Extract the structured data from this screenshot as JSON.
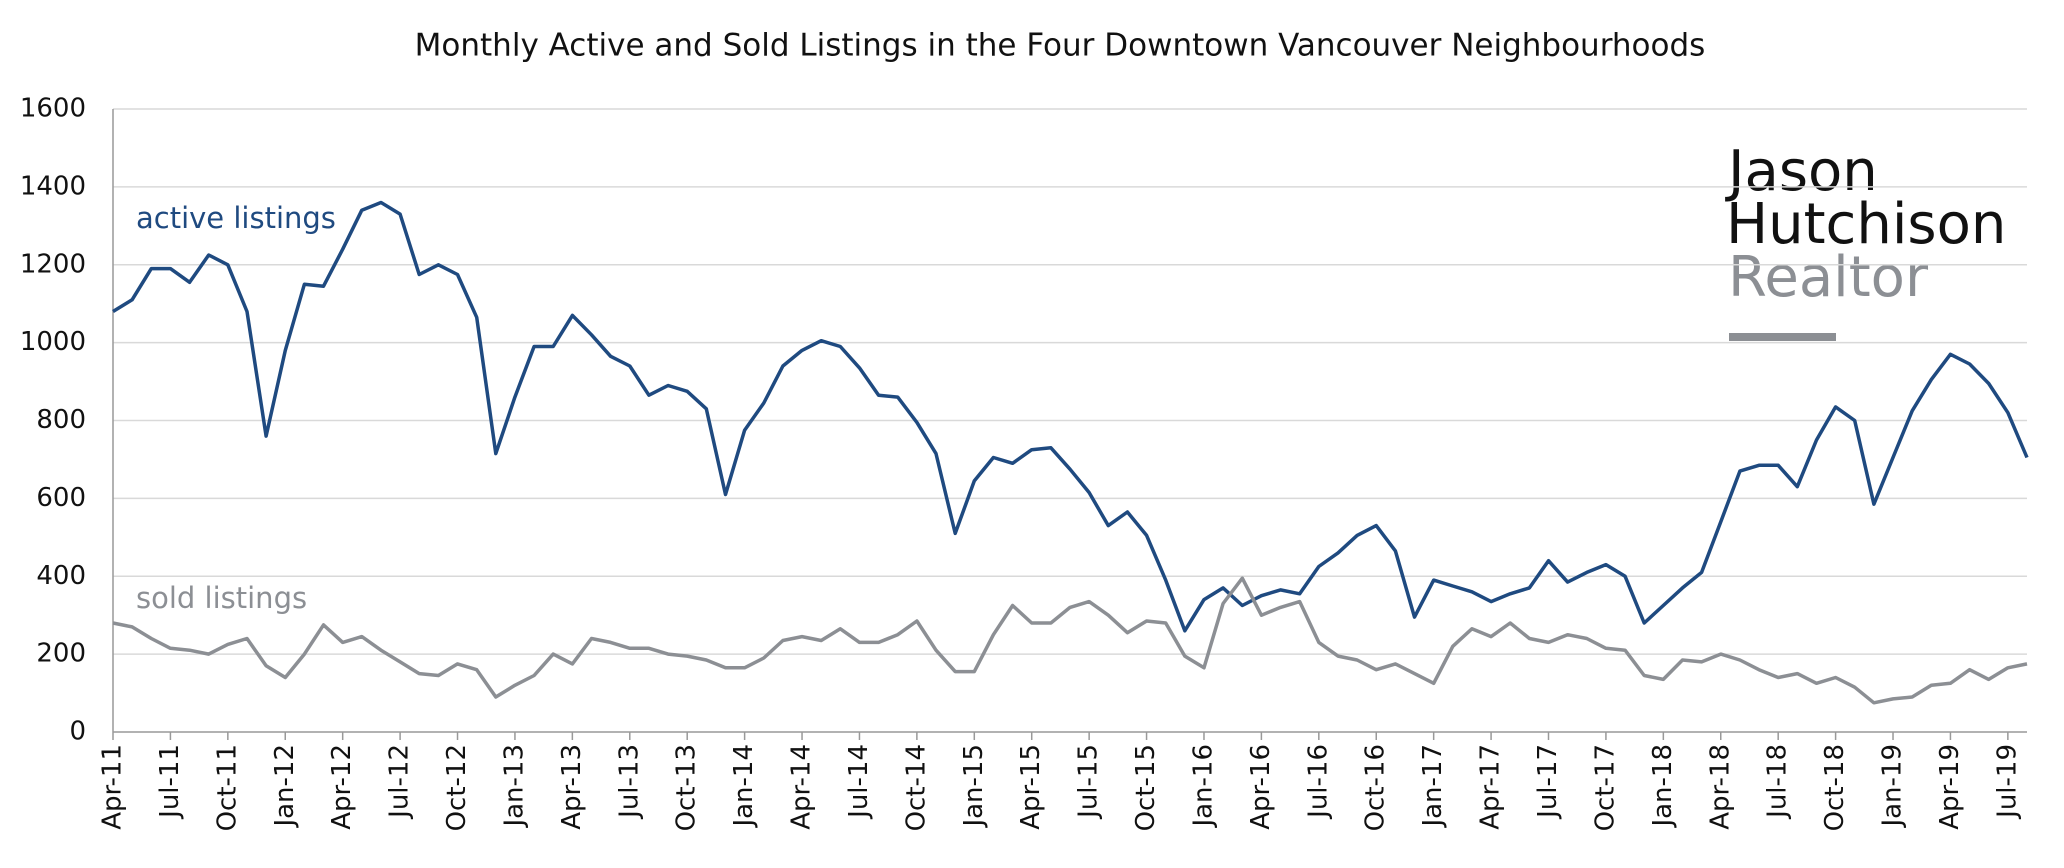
{
  "chart_data": {
    "type": "line",
    "title": "Monthly Active and Sold Listings in the Four Downtown Vancouver Neighbourhoods",
    "categories": [
      "Apr-11",
      null,
      null,
      "Jul-11",
      null,
      null,
      "Oct-11",
      null,
      null,
      "Jan-12",
      null,
      null,
      "Apr-12",
      null,
      null,
      "Jul-12",
      null,
      null,
      "Oct-12",
      null,
      null,
      "Jan-13",
      null,
      null,
      "Apr-13",
      null,
      null,
      "Jul-13",
      null,
      null,
      "Oct-13",
      null,
      null,
      "Jan-14",
      null,
      null,
      "Apr-14",
      null,
      null,
      "Jul-14",
      null,
      null,
      "Oct-14",
      null,
      null,
      "Jan-15",
      null,
      null,
      "Apr-15",
      null,
      null,
      "Jul-15",
      null,
      null,
      "Oct-15",
      null,
      null,
      "Jan-16",
      null,
      null,
      "Apr-16",
      null,
      null,
      "Jul-16",
      null,
      null,
      "Oct-16",
      null,
      null,
      "Jan-17",
      null,
      null,
      "Apr-17",
      null,
      null,
      "Jul-17",
      null,
      null,
      "Oct-17",
      null,
      null,
      "Jan-18",
      null,
      null,
      "Apr-18",
      null,
      null,
      "Jul-18",
      null,
      null,
      "Oct-18",
      null,
      null,
      "Jan-19",
      null,
      null,
      "Apr-19",
      null,
      null,
      "Jul-19",
      null
    ],
    "series": [
      {
        "name": "active listings",
        "color": "#1f4a80",
        "values": [
          1080,
          1110,
          1190,
          1190,
          1155,
          1225,
          1200,
          1080,
          760,
          980,
          1150,
          1145,
          1240,
          1340,
          1360,
          1330,
          1175,
          1200,
          1175,
          1065,
          715,
          860,
          990,
          990,
          1070,
          1020,
          965,
          940,
          865,
          890,
          875,
          830,
          610,
          775,
          845,
          940,
          980,
          1005,
          990,
          935,
          865,
          860,
          795,
          715,
          510,
          645,
          705,
          690,
          725,
          730,
          675,
          615,
          530,
          565,
          505,
          390,
          260,
          340,
          370,
          325,
          350,
          365,
          355,
          425,
          460,
          505,
          530,
          465,
          295,
          390,
          375,
          360,
          335,
          355,
          370,
          440,
          385,
          410,
          430,
          400,
          280,
          325,
          370,
          410,
          540,
          670,
          685,
          685,
          630,
          750,
          835,
          800,
          585,
          705,
          825,
          905,
          970,
          945,
          895,
          820,
          705
        ]
      },
      {
        "name": "sold listings",
        "color": "#8c8f94",
        "values": [
          280,
          270,
          240,
          215,
          210,
          200,
          225,
          240,
          170,
          140,
          200,
          275,
          230,
          245,
          210,
          180,
          150,
          145,
          175,
          160,
          90,
          120,
          145,
          200,
          175,
          240,
          230,
          215,
          215,
          200,
          195,
          185,
          165,
          165,
          190,
          235,
          245,
          235,
          265,
          230,
          230,
          250,
          285,
          210,
          155,
          155,
          250,
          325,
          280,
          280,
          320,
          335,
          300,
          255,
          285,
          280,
          195,
          165,
          330,
          395,
          300,
          320,
          335,
          230,
          195,
          185,
          160,
          175,
          150,
          125,
          220,
          265,
          245,
          280,
          240,
          230,
          250,
          240,
          215,
          210,
          145,
          135,
          185,
          180,
          200,
          185,
          160,
          140,
          150,
          125,
          140,
          115,
          75,
          85,
          90,
          120,
          125,
          160,
          135,
          165,
          175
        ]
      }
    ],
    "ylim": [
      0,
      1600
    ],
    "yticks": [
      0,
      200,
      400,
      600,
      800,
      1000,
      1200,
      1400,
      1600
    ],
    "grid": true,
    "logo": [
      "Jason",
      "Hutchison",
      "Realtor"
    ]
  }
}
